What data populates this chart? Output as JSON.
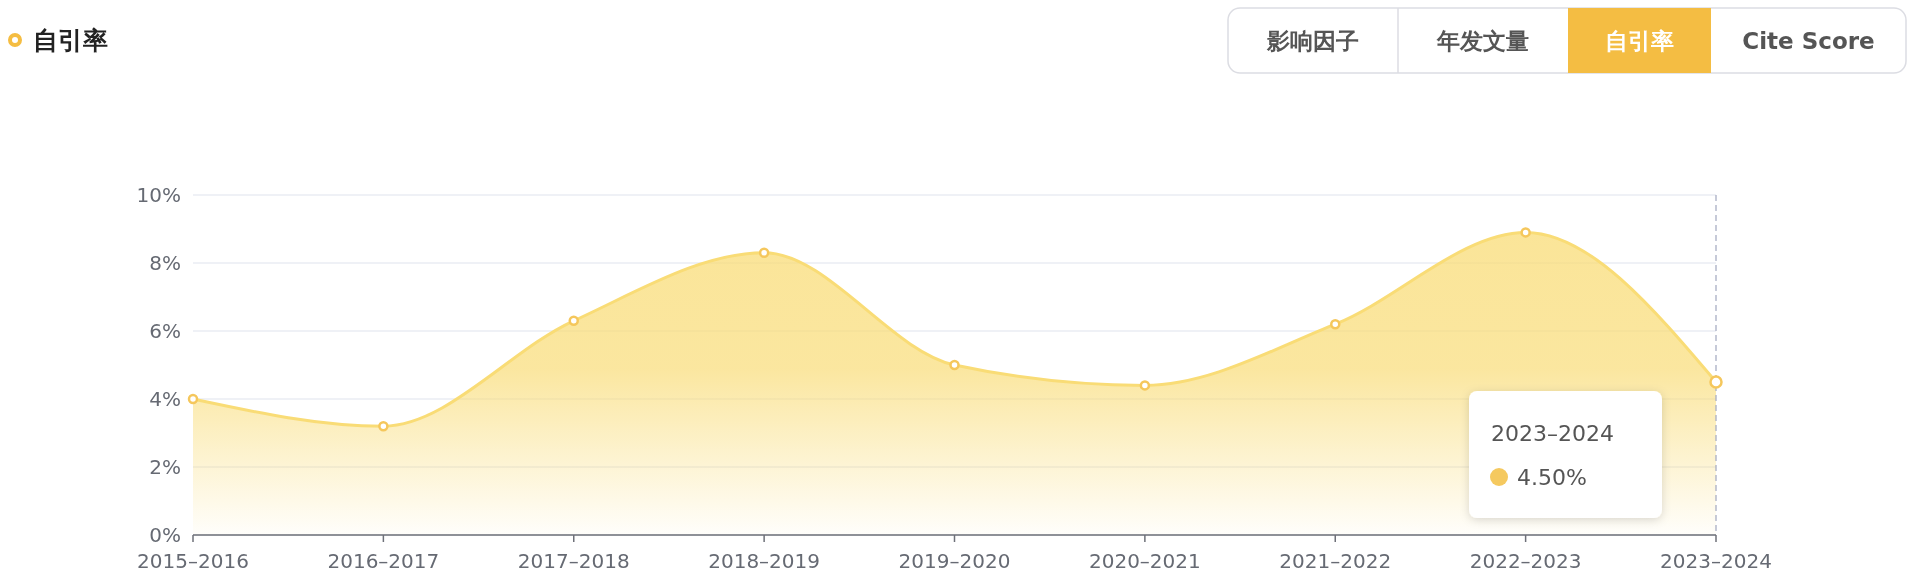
{
  "chart_data": {
    "type": "area",
    "title": "自引率",
    "categories": [
      "2015–2016",
      "2016–2017",
      "2017–2018",
      "2018–2019",
      "2019–2020",
      "2020–2021",
      "2021–2022",
      "2022–2023",
      "2023–2024"
    ],
    "series": [
      {
        "color": "#f9dc76",
        "values": [
          4.0,
          3.2,
          6.3,
          8.3,
          5.0,
          4.4,
          6.2,
          8.9,
          4.5
        ]
      }
    ],
    "ylim": [
      0,
      10
    ],
    "yticks": [
      {
        "value": 0,
        "label": "0%"
      },
      {
        "value": 2,
        "label": "2%"
      },
      {
        "value": 4,
        "label": "4%"
      },
      {
        "value": 6,
        "label": "6%"
      },
      {
        "value": 8,
        "label": "8%"
      },
      {
        "value": 10,
        "label": "10%"
      }
    ],
    "grid": "y",
    "marker": "circle",
    "line_style": "solid",
    "ref_lines": [
      {
        "axis": "x",
        "value": "2023–2024",
        "color": "#a8aec4",
        "line_style": "dashed"
      }
    ],
    "annotations": [
      "影响因子",
      "年发文量",
      "自引率",
      "Cite Score",
      "2023–2024\n4.50%"
    ]
  }
}
